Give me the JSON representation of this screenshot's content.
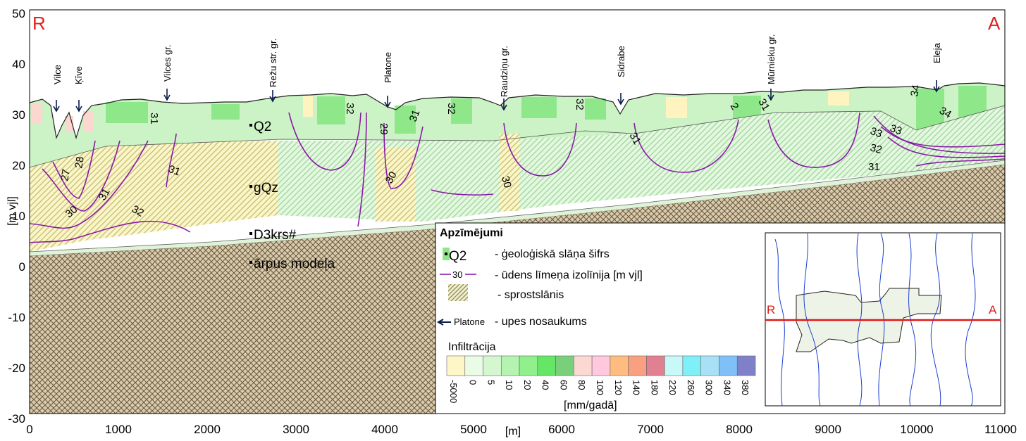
{
  "corner_labels": {
    "left": "R",
    "right": "A"
  },
  "axes": {
    "y_label": "[m vjl]",
    "x_label": "[m]",
    "y_ticks": [
      50,
      40,
      30,
      20,
      10,
      0,
      -10,
      -20,
      -30
    ],
    "x_ticks": [
      0,
      1000,
      2000,
      3000,
      4000,
      5000,
      6000,
      7000,
      8000,
      9000,
      10000,
      11000
    ]
  },
  "rivers": [
    "Vilce",
    "Ķīve",
    "Vilces gr.",
    "Režu str. gr.",
    "Platone",
    "Raudziņu gr.",
    "Sidrabe",
    "Mūrnieku gr.",
    "Eleja"
  ],
  "layers": [
    "Q2",
    "gQz",
    "D3krs#",
    "ārpus modeļa"
  ],
  "isoline_labels": [
    "31",
    "32",
    "29",
    "30",
    "33",
    "34",
    "28",
    "27",
    "31",
    "32",
    "30",
    "31",
    "32",
    "31",
    "32",
    "30",
    "31",
    "2",
    "31",
    "31",
    "34",
    "32",
    "33"
  ],
  "legend": {
    "title": "Apzīmējumi",
    "items": [
      {
        "symbol": "Q2",
        "text": "- ģeoloģiskā slāņa šifrs"
      },
      {
        "symbol": "30",
        "text": "- ūdens līmeņa izolīnija [m vjl]"
      },
      {
        "symbol": "",
        "text": "- sprostslānis"
      },
      {
        "symbol": "Platone",
        "text": "- upes nosaukums"
      }
    ],
    "infiltration_title": "Infiltrācija",
    "infiltration_unit": "[mm/gadā]",
    "infiltration_labels": [
      "-5000",
      "0",
      "5",
      "10",
      "20",
      "40",
      "60",
      "80",
      "100",
      "120",
      "140",
      "180",
      "220",
      "260",
      "300",
      "340",
      "380"
    ],
    "infiltration_colors": [
      "#fdf7c8",
      "#eafbe6",
      "#d5f7d0",
      "#b4f3b0",
      "#8ff08c",
      "#66e666",
      "#7ad07a",
      "#fbd9d2",
      "#ffc8dc",
      "#ffbc80",
      "#f9a080",
      "#e08090",
      "#c8f8f8",
      "#80f0f8",
      "#a8e0f8",
      "#80c0f8",
      "#8080c8"
    ]
  },
  "inset": {
    "left": "R",
    "right": "A"
  }
}
